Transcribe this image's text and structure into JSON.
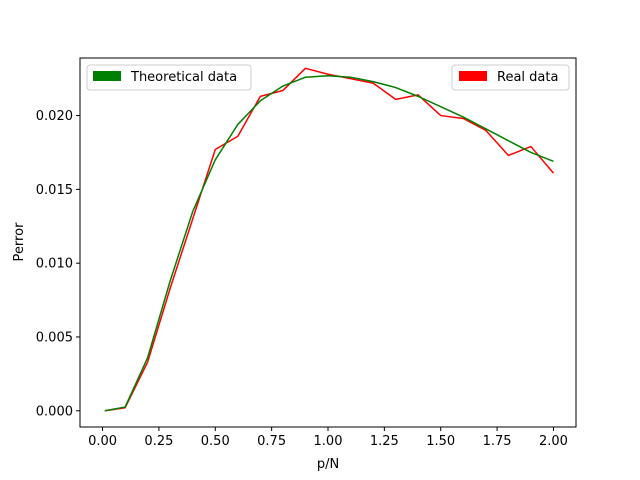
{
  "chart_data": {
    "type": "line",
    "title": "",
    "xlabel": "p/N",
    "ylabel": "Perror",
    "xlim": [
      -0.1,
      2.1
    ],
    "ylim": [
      -0.0011,
      0.0239
    ],
    "xticks": [
      0.0,
      0.25,
      0.5,
      0.75,
      1.0,
      1.25,
      1.5,
      1.75,
      2.0
    ],
    "xtick_labels": [
      "0.00",
      "0.25",
      "0.50",
      "0.75",
      "1.00",
      "1.25",
      "1.50",
      "1.75",
      "2.00"
    ],
    "yticks": [
      0.0,
      0.005,
      0.01,
      0.015,
      0.02
    ],
    "ytick_labels": [
      "0.000",
      "0.005",
      "0.010",
      "0.015",
      "0.020"
    ],
    "grid": false,
    "series": [
      {
        "name": "Theoretical data",
        "color": "#008000",
        "legend_position": "upper-left",
        "x": [
          0.01,
          0.1,
          0.2,
          0.3,
          0.4,
          0.5,
          0.6,
          0.7,
          0.8,
          0.9,
          1.0,
          1.1,
          1.2,
          1.3,
          1.4,
          1.5,
          1.6,
          1.7,
          1.8,
          1.9,
          2.0
        ],
        "y": [
          0.0,
          0.00025,
          0.0036,
          0.0088,
          0.0135,
          0.017,
          0.0194,
          0.021,
          0.022,
          0.0226,
          0.0227,
          0.0226,
          0.0223,
          0.0219,
          0.0213,
          0.0206,
          0.0199,
          0.0191,
          0.0183,
          0.0175,
          0.0169
        ]
      },
      {
        "name": "Real data",
        "color": "#ff0000",
        "legend_position": "upper-right",
        "x": [
          0.01,
          0.1,
          0.2,
          0.3,
          0.4,
          0.5,
          0.6,
          0.7,
          0.8,
          0.9,
          1.0,
          1.1,
          1.2,
          1.3,
          1.4,
          1.5,
          1.6,
          1.7,
          1.8,
          1.9,
          2.0
        ],
        "y": [
          0.0,
          0.0002,
          0.0033,
          0.0083,
          0.013,
          0.0177,
          0.0186,
          0.0213,
          0.0217,
          0.0232,
          0.0228,
          0.0225,
          0.0222,
          0.0211,
          0.0214,
          0.02,
          0.0198,
          0.019,
          0.0173,
          0.0179,
          0.0161
        ]
      }
    ]
  }
}
